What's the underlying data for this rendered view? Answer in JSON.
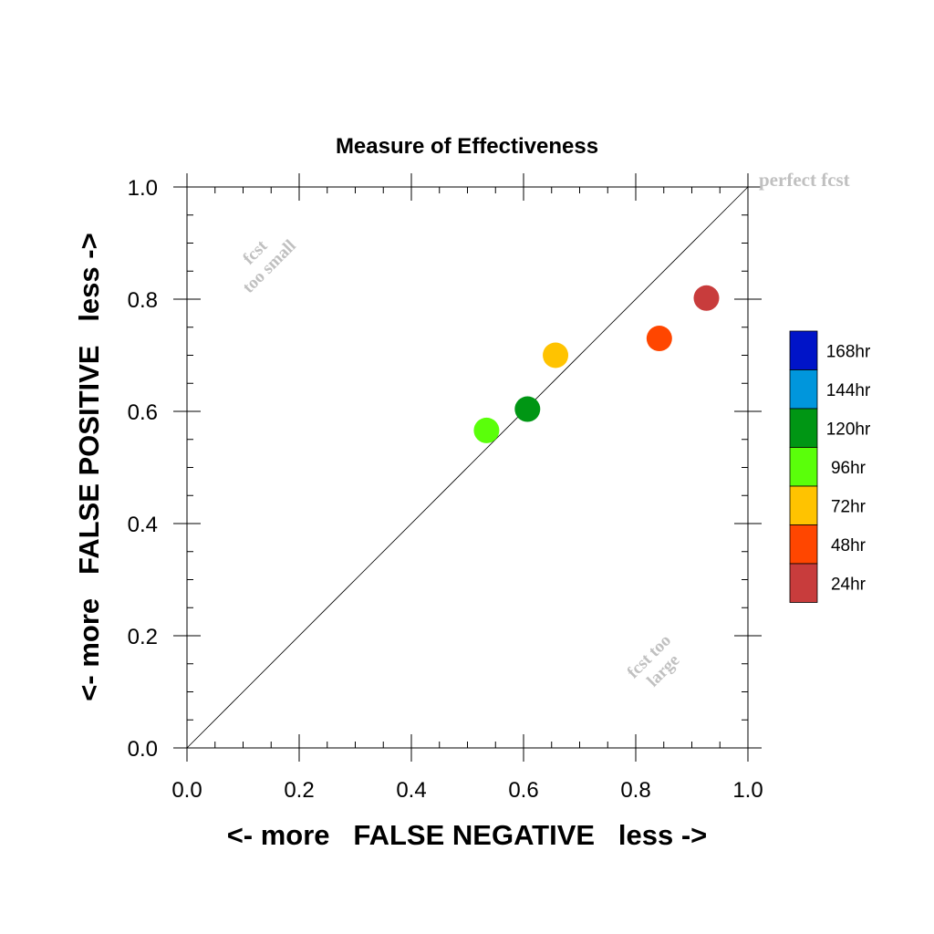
{
  "chart_data": {
    "type": "scatter",
    "title": "Measure of Effectiveness",
    "xlabel": "<- more   FALSE NEGATIVE   less ->",
    "ylabel": "<- more   FALSE POSITIVE   less ->",
    "xlim": [
      0.0,
      1.0
    ],
    "ylim": [
      0.0,
      1.0
    ],
    "xticks": [
      "0.0",
      "0.2",
      "0.4",
      "0.6",
      "0.8",
      "1.0"
    ],
    "yticks": [
      "0.0",
      "0.2",
      "0.4",
      "0.6",
      "0.8",
      "1.0"
    ],
    "grid": false,
    "diagonal_label": "perfect fcst",
    "annotations": {
      "upper_left": [
        "fcst",
        "too small"
      ],
      "lower_right": [
        "fcst too",
        "large"
      ]
    },
    "legend": {
      "placement": "right",
      "entries": [
        {
          "label": "168hr",
          "color": "#0014c8"
        },
        {
          "label": "144hr",
          "color": "#0096dc"
        },
        {
          "label": "120hr",
          "color": "#009614"
        },
        {
          "label": "96hr",
          "color": "#5aff0a"
        },
        {
          "label": "72hr",
          "color": "#ffc300"
        },
        {
          "label": "48hr",
          "color": "#ff4600"
        },
        {
          "label": "24hr",
          "color": "#c83c3c"
        }
      ]
    },
    "points": [
      {
        "lead": "24hr",
        "x": 0.926,
        "y": 0.802,
        "color": "#c83c3c"
      },
      {
        "lead": "48hr",
        "x": 0.842,
        "y": 0.73,
        "color": "#ff4600"
      },
      {
        "lead": "72hr",
        "x": 0.657,
        "y": 0.7,
        "color": "#ffc300"
      },
      {
        "lead": "96hr",
        "x": 0.534,
        "y": 0.566,
        "color": "#5aff0a"
      },
      {
        "lead": "120hr",
        "x": 0.607,
        "y": 0.604,
        "color": "#009614"
      }
    ]
  }
}
